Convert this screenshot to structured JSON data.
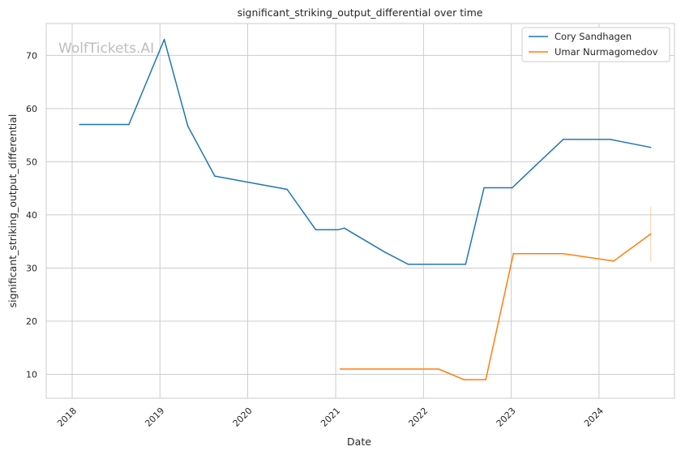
{
  "chart_data": {
    "type": "line",
    "title": "significant_striking_output_differential over time",
    "xlabel": "Date",
    "ylabel": "significant_striking_output_differential",
    "watermark": "WolfTickets.AI",
    "x_ticks": [
      "2018",
      "2019",
      "2020",
      "2021",
      "2022",
      "2023",
      "2024"
    ],
    "y_ticks": [
      10,
      20,
      30,
      40,
      50,
      60,
      70
    ],
    "xlim": [
      "2017-09-15",
      "2024-11-10"
    ],
    "ylim": [
      5.5,
      76
    ],
    "grid": true,
    "legend_position": "top-right",
    "series": [
      {
        "name": "Cory Sandhagen",
        "color": "#1f77b4",
        "points": [
          [
            "2018-02-01",
            57.0
          ],
          [
            "2018-08-25",
            57.0
          ],
          [
            "2019-01-19",
            73.0
          ],
          [
            "2019-04-27",
            56.7
          ],
          [
            "2019-08-17",
            47.3
          ],
          [
            "2020-06-13",
            44.8
          ],
          [
            "2020-10-10",
            37.2
          ],
          [
            "2021-01-10",
            37.2
          ],
          [
            "2021-02-06",
            37.5
          ],
          [
            "2021-07-24",
            33.0
          ],
          [
            "2021-10-30",
            30.7
          ],
          [
            "2022-06-25",
            30.7
          ],
          [
            "2022-09-10",
            45.1
          ],
          [
            "2023-01-05",
            45.1
          ],
          [
            "2023-03-25",
            48.5
          ],
          [
            "2023-08-05",
            54.2
          ],
          [
            "2024-02-17",
            54.2
          ],
          [
            "2024-08-03",
            52.7
          ]
        ]
      },
      {
        "name": "Umar Nurmagomedov",
        "color": "#ff7f0e",
        "points": [
          [
            "2021-01-20",
            11.0
          ],
          [
            "2022-03-05",
            11.0
          ],
          [
            "2022-06-18",
            9.0
          ],
          [
            "2022-09-17",
            9.0
          ],
          [
            "2023-01-10",
            32.7
          ],
          [
            "2023-08-05",
            32.7
          ],
          [
            "2024-03-02",
            31.3
          ],
          [
            "2024-08-03",
            36.4
          ]
        ],
        "error_band": {
          "x": "2024-08-03",
          "low": 31.2,
          "high": 41.6
        }
      }
    ]
  }
}
